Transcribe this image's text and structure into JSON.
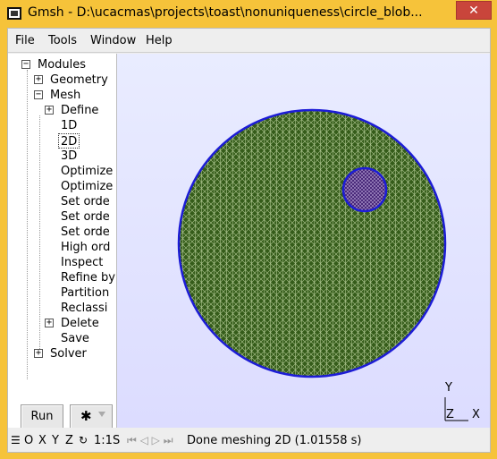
{
  "window": {
    "title": "Gmsh - D:\\ucacmas\\projects\\toast\\nonuniqueness\\circle_blob...",
    "close_glyph": "✕"
  },
  "menu": [
    "File",
    "Tools",
    "Window",
    "Help"
  ],
  "tree": {
    "modules": "Modules",
    "geometry": "Geometry",
    "mesh": "Mesh",
    "mesh_items": [
      "Define",
      "1D",
      "2D",
      "3D",
      "Optimize",
      "Optimize",
      "Set orde",
      "Set orde",
      "Set orde",
      "High ord",
      "Inspect",
      "Refine by",
      "Partition",
      "Reclassi",
      "Delete",
      "Save"
    ],
    "solver": "Solver",
    "selected_item": "2D",
    "toggle_expanded": "−",
    "toggle_collapsed": "+"
  },
  "buttons": {
    "run_label": "Run",
    "gear_glyph": "✱"
  },
  "viewport": {
    "axis_y": "Y",
    "axis_z": "Z",
    "axis_x": "X",
    "colors": {
      "mesh_fill": "#355c1a",
      "mesh_outline": "#1c1cd6",
      "blob_fill": "#4a2a7a",
      "background_top": "#e9ecff",
      "background_bottom": "#dcdcff"
    }
  },
  "statusbar": {
    "menu_glyph": "☰",
    "view_o": "O",
    "view_x": "X",
    "view_y": "Y",
    "view_z": "Z",
    "rotate_glyph": "↻",
    "scale": "1:1",
    "s_label": "S",
    "nav_glyphs": "⏮ ◁ ▷ ⏭",
    "status": "Done meshing 2D (1.01558 s)"
  }
}
